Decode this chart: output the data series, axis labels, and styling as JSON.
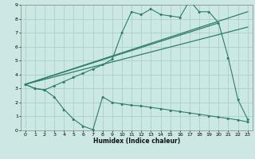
{
  "xlabel": "Humidex (Indice chaleur)",
  "bg_color": "#cce8e4",
  "grid_color": "#aacfc9",
  "line_color": "#2e7d6e",
  "xlim": [
    -0.5,
    23.5
  ],
  "ylim": [
    0,
    9
  ],
  "xticks": [
    0,
    1,
    2,
    3,
    4,
    5,
    6,
    7,
    8,
    9,
    10,
    11,
    12,
    13,
    14,
    15,
    16,
    17,
    18,
    19,
    20,
    21,
    22,
    23
  ],
  "yticks": [
    0,
    1,
    2,
    3,
    4,
    5,
    6,
    7,
    8,
    9
  ],
  "series1_x": [
    0,
    1,
    2,
    3,
    4,
    5,
    6,
    7,
    8,
    9,
    10,
    11,
    12,
    13,
    14,
    15,
    16,
    17,
    18,
    19,
    20,
    21,
    22,
    23
  ],
  "series1_y": [
    3.3,
    3.0,
    2.9,
    2.4,
    1.5,
    0.8,
    0.3,
    0.05,
    2.4,
    2.0,
    1.9,
    1.8,
    1.75,
    1.65,
    1.55,
    1.45,
    1.35,
    1.25,
    1.15,
    1.05,
    0.95,
    0.85,
    0.75,
    0.6
  ],
  "series2_x": [
    0,
    1,
    2,
    3,
    4,
    5,
    6,
    7,
    8,
    9,
    10,
    11,
    12,
    13,
    14,
    15,
    16,
    17,
    18,
    19,
    20,
    21,
    22,
    23
  ],
  "series2_y": [
    3.3,
    3.0,
    2.9,
    3.2,
    3.5,
    3.8,
    4.1,
    4.4,
    4.7,
    5.1,
    7.0,
    8.5,
    8.3,
    8.7,
    8.3,
    8.2,
    8.1,
    9.3,
    8.5,
    8.5,
    7.7,
    5.2,
    2.2,
    0.8
  ],
  "series3_x": [
    0,
    20
  ],
  "series3_y": [
    3.3,
    7.7
  ],
  "series4_x": [
    0,
    23
  ],
  "series4_y": [
    3.3,
    8.5
  ],
  "series5_x": [
    0,
    23
  ],
  "series5_y": [
    3.3,
    7.4
  ]
}
